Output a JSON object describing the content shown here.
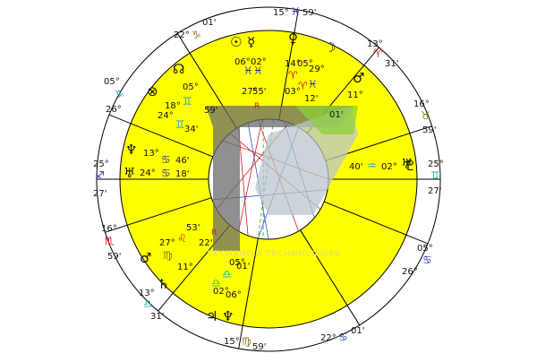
{
  "colors": {
    "house_fill": "#ffff00",
    "ring_fill": "#ffffff",
    "inner_fill": "#ffffff",
    "line": "#000000",
    "aspect_red": "#cc2222",
    "aspect_blue": "#3355cc",
    "aspect_green": "#229933",
    "watermark_dark": "#6b6b6b",
    "watermark_light": "#b9c6cc",
    "watermark_green": "#8fcf3a",
    "fire": "#e02020",
    "air": "#20b0b0",
    "water": "#2233aa",
    "earth": "#8a7a22"
  },
  "cusps": [
    {
      "deg": "15°",
      "sign": "♓",
      "min": "59'"
    },
    {
      "deg": "13°",
      "sign": "♈",
      "min": "31'"
    },
    {
      "deg": "16°",
      "sign": "♉",
      "min": "59'"
    },
    {
      "deg": "25°",
      "sign": "♊",
      "min": "27'"
    },
    {
      "deg": "05°",
      "sign": "♋",
      "min": "26°"
    },
    {
      "deg": "22°",
      "sign": "♋",
      "min": "01'"
    },
    {
      "deg": "15°",
      "sign": "♍",
      "min": "59'"
    },
    {
      "deg": "13°",
      "sign": "♎",
      "min": "31'"
    },
    {
      "deg": "16°",
      "sign": "♏",
      "min": "59'"
    },
    {
      "deg": "25°",
      "sign": "♐",
      "min": "27'"
    },
    {
      "deg": "05°",
      "sign": "♑",
      "min": "26°"
    },
    {
      "deg": "22°",
      "sign": "♑",
      "min": "01'"
    }
  ],
  "planets": [
    {
      "glyph": "☉",
      "deg": "06°",
      "sign": "♓",
      "min": "02°"
    },
    {
      "glyph": "☿",
      "deg": "27°",
      "sign": "♓",
      "min": "55'"
    },
    {
      "glyph": "♀",
      "deg": "14°",
      "sign": "♈",
      "min": "05°"
    },
    {
      "glyph": "☽",
      "deg": "29°",
      "sign": "♈",
      "min": "03°"
    },
    {
      "glyph": "♂",
      "deg": "11°",
      "sign": "♉",
      "min": "12'"
    },
    {
      "glyph": "♅",
      "deg": "02°",
      "sign": "♒",
      "min": "40'"
    },
    {
      "glyph": "☊",
      "deg": "18°",
      "sign": "♊",
      "min": "34'"
    },
    {
      "glyph": "⊗",
      "deg": "24°",
      "sign": "♊",
      "min": "05°"
    },
    {
      "glyph": "♆",
      "deg": "13°",
      "sign": "♋",
      "min": "46'"
    },
    {
      "glyph": "♅",
      "deg": "24°",
      "sign": "♋",
      "min": "18'"
    },
    {
      "glyph": "♂",
      "deg": "27°",
      "sign": "♌",
      "min": "53'"
    },
    {
      "glyph": "♄",
      "deg": "11°",
      "sign": "♍",
      "min": "22'"
    },
    {
      "glyph": "♇",
      "deg": "02°",
      "sign": "♎",
      "min": "06°"
    },
    {
      "glyph": "♃",
      "deg": "05°",
      "sign": "♎",
      "min": "01'"
    },
    {
      "glyph": "♆",
      "deg": "02°",
      "sign": "♎",
      "min": "06°"
    }
  ],
  "retro_marker": "R",
  "watermark_text": "TECHSHILA TECHNOLOGIES",
  "icons": {
    "sun": "sun-icon",
    "mercury": "mercury-icon",
    "venus": "venus-icon",
    "moon": "moon-icon",
    "mars": "mars-icon",
    "uranus": "uranus-icon",
    "node": "node-icon",
    "fortune": "fortune-icon",
    "neptune": "neptune-icon",
    "saturn": "saturn-icon",
    "pluto": "pluto-icon",
    "jupiter": "jupiter-icon"
  }
}
